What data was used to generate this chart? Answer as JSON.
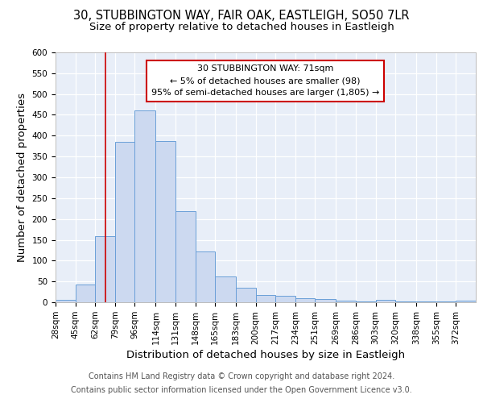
{
  "title_line1": "30, STUBBINGTON WAY, FAIR OAK, EASTLEIGH, SO50 7LR",
  "title_line2": "Size of property relative to detached houses in Eastleigh",
  "xlabel": "Distribution of detached houses by size in Eastleigh",
  "ylabel": "Number of detached properties",
  "bin_labels": [
    "28sqm",
    "45sqm",
    "62sqm",
    "79sqm",
    "96sqm",
    "114sqm",
    "131sqm",
    "148sqm",
    "165sqm",
    "183sqm",
    "200sqm",
    "217sqm",
    "234sqm",
    "251sqm",
    "269sqm",
    "286sqm",
    "303sqm",
    "320sqm",
    "338sqm",
    "355sqm",
    "372sqm"
  ],
  "bar_values": [
    5,
    42,
    158,
    385,
    460,
    388,
    218,
    122,
    62,
    35,
    17,
    16,
    10,
    7,
    4,
    1,
    5,
    1,
    1,
    1,
    4
  ],
  "bar_color": "#ccd9f0",
  "bar_edge_color": "#6a9fd8",
  "red_line_x": 71,
  "bin_edges": [
    28,
    45,
    62,
    79,
    96,
    114,
    131,
    148,
    165,
    183,
    200,
    217,
    234,
    251,
    269,
    286,
    303,
    320,
    338,
    355,
    372,
    389
  ],
  "ylim": [
    0,
    600
  ],
  "yticks": [
    0,
    50,
    100,
    150,
    200,
    250,
    300,
    350,
    400,
    450,
    500,
    550,
    600
  ],
  "annotation_text": "30 STUBBINGTON WAY: 71sqm\n← 5% of detached houses are smaller (98)\n95% of semi-detached houses are larger (1,805) →",
  "annotation_box_color": "#ffffff",
  "annotation_box_edge": "#cc0000",
  "footer_line1": "Contains HM Land Registry data © Crown copyright and database right 2024.",
  "footer_line2": "Contains public sector information licensed under the Open Government Licence v3.0.",
  "fig_bg_color": "#ffffff",
  "axes_bg_color": "#e8eef8",
  "grid_color": "#ffffff",
  "title_fontsize": 10.5,
  "subtitle_fontsize": 9.5,
  "axis_label_fontsize": 9.5,
  "tick_fontsize": 7.5,
  "annotation_fontsize": 8,
  "footer_fontsize": 7
}
